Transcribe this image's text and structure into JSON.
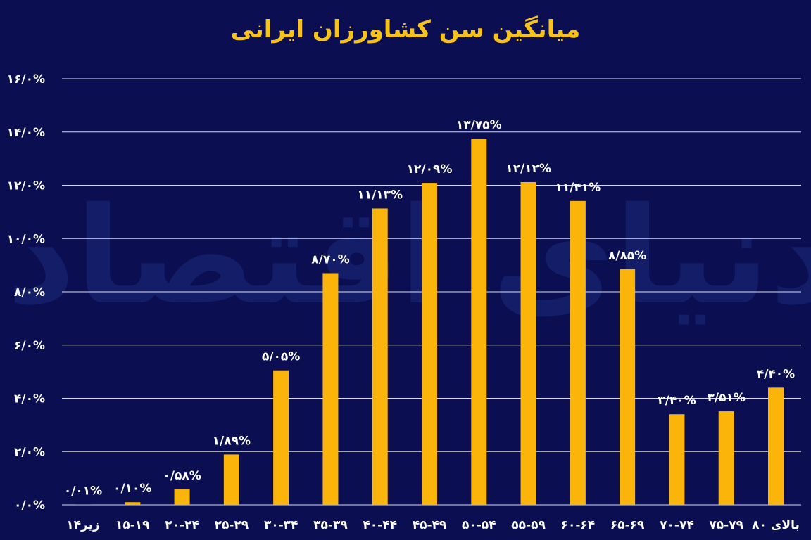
{
  "colors": {
    "background": "#0b0f52",
    "bar": "#fbb50a",
    "title": "#f7c21a",
    "text": "#ffffff",
    "grid": "#ffffff",
    "watermark": "#1a2a7a"
  },
  "chart_data": {
    "type": "bar",
    "title": "میانگین سن کشاورزان ایرانی",
    "watermark": "دنیای اقتصاد",
    "grid": true,
    "ylim": [
      0,
      16
    ],
    "yticks": [
      0,
      2,
      4,
      6,
      8,
      10,
      12,
      14,
      16
    ],
    "ytick_labels": [
      "۰/۰%",
      "۲/۰%",
      "۴/۰%",
      "۶/۰%",
      "۸/۰%",
      "۱۰/۰%",
      "۱۲/۰%",
      "۱۴/۰%",
      "۱۶/۰%"
    ],
    "categories": [
      "زیر۱۴",
      "۱۵-۱۹",
      "۲۰-۲۴",
      "۲۵-۲۹",
      "۳۰-۳۴",
      "۳۵-۳۹",
      "۴۰-۴۴",
      "۴۵-۴۹",
      "۵۰-۵۴",
      "۵۵-۵۹",
      "۶۰-۶۴",
      "۶۵-۶۹",
      "۷۰-۷۴",
      "۷۵-۷۹",
      "بالای ۸۰"
    ],
    "values": [
      0.01,
      0.1,
      0.58,
      1.89,
      5.05,
      8.7,
      11.13,
      12.09,
      13.75,
      12.12,
      11.41,
      8.85,
      3.4,
      3.51,
      4.4
    ],
    "value_labels": [
      "۰/۰۱%",
      "۰/۱۰%",
      "۰/۵۸%",
      "۱/۸۹%",
      "۵/۰۵%",
      "۸/۷۰%",
      "۱۱/۱۳%",
      "۱۲/۰۹%",
      "۱۳/۷۵%",
      "۱۲/۱۲%",
      "۱۱/۴۱%",
      "۸/۸۵%",
      "۳/۴۰%",
      "۳/۵۱%",
      "۴/۴۰%"
    ]
  }
}
